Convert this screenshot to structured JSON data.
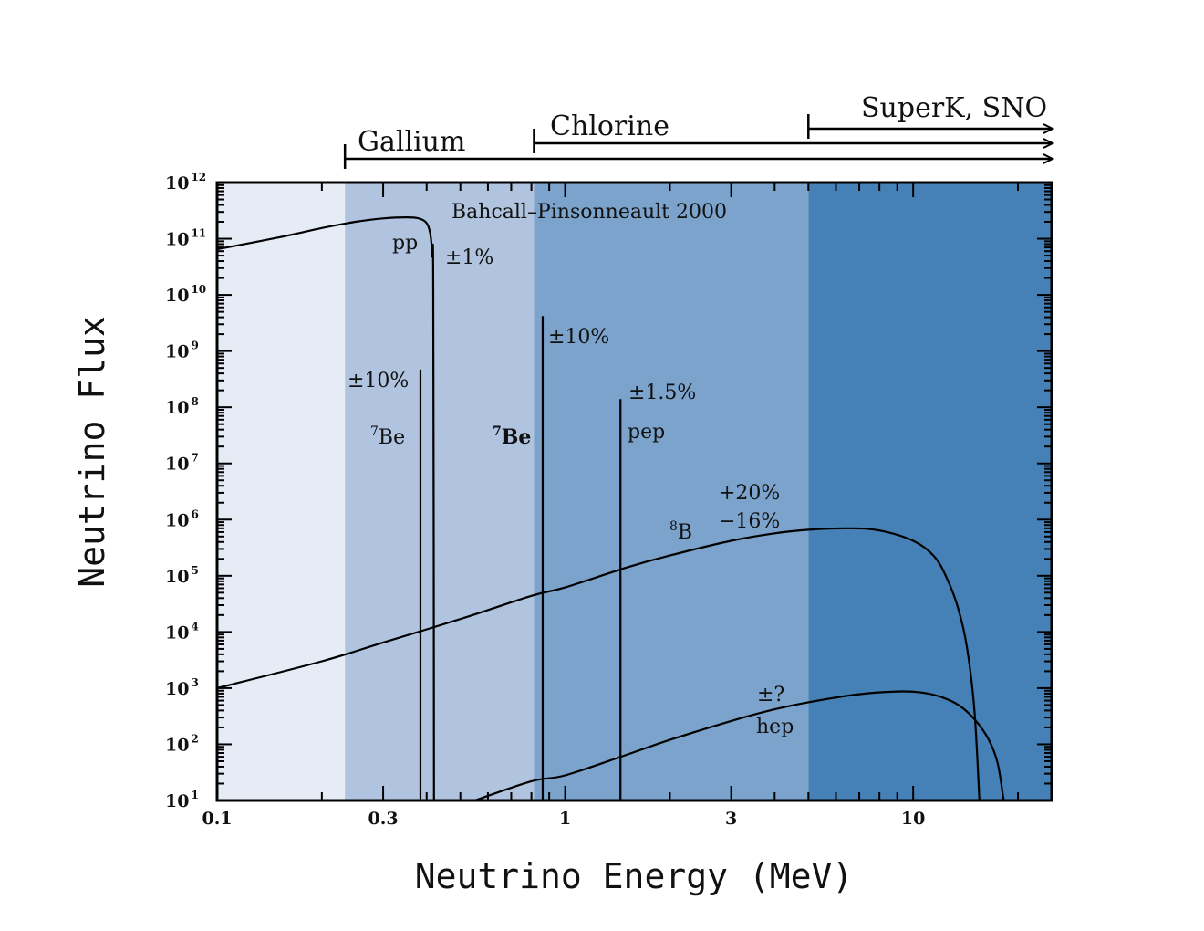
{
  "chart_data": {
    "type": "line",
    "title": "",
    "source_label": "Bahcall–Pinsonneault 2000",
    "xlabel": "Neutrino Energy (MeV)",
    "ylabel": "Neutrino Flux",
    "xscale": "log",
    "yscale": "log",
    "xlim": [
      0.1,
      25
    ],
    "ylim": [
      10,
      1000000000000.0
    ],
    "x_ticks": [
      {
        "value": 0.1,
        "label": "0.1"
      },
      {
        "value": 0.3,
        "label": "0.3"
      },
      {
        "value": 1,
        "label": "1"
      },
      {
        "value": 3,
        "label": "3"
      },
      {
        "value": 10,
        "label": "10"
      }
    ],
    "y_ticks": [
      {
        "value": 1,
        "base": "10",
        "exp": "1"
      },
      {
        "value": 2,
        "base": "10",
        "exp": "2"
      },
      {
        "value": 3,
        "base": "10",
        "exp": "3"
      },
      {
        "value": 4,
        "base": "10",
        "exp": "4"
      },
      {
        "value": 5,
        "base": "10",
        "exp": "5"
      },
      {
        "value": 6,
        "base": "10",
        "exp": "6"
      },
      {
        "value": 7,
        "base": "10",
        "exp": "7"
      },
      {
        "value": 8,
        "base": "10",
        "exp": "8"
      },
      {
        "value": 9,
        "base": "10",
        "exp": "9"
      },
      {
        "value": 10,
        "base": "10",
        "exp": "10"
      },
      {
        "value": 11,
        "base": "10",
        "exp": "11"
      },
      {
        "value": 12,
        "base": "10",
        "exp": "12"
      }
    ],
    "grid": false,
    "regions": [
      {
        "name": "below-gallium",
        "from": 0.1,
        "to": 0.233,
        "color": "#e6ecf6"
      },
      {
        "name": "gallium",
        "from": 0.233,
        "to": 0.814,
        "color": "#b0c4df"
      },
      {
        "name": "chlorine",
        "from": 0.814,
        "to": 5.0,
        "color": "#7ba3cb"
      },
      {
        "name": "superk-sno",
        "from": 5.0,
        "to": 25,
        "color": "#4581b6"
      }
    ],
    "detectors": [
      {
        "label": "Gallium",
        "threshold": 0.233
      },
      {
        "label": "Chlorine",
        "threshold": 0.814
      },
      {
        "label": "SuperK, SNO",
        "threshold": 5.0
      }
    ],
    "series": [
      {
        "name": "pp",
        "kind": "continuum",
        "label": "pp",
        "uncertainty": "±1%",
        "points": [
          [
            0.1,
            65000000000.0
          ],
          [
            0.15,
            105000000000.0
          ],
          [
            0.2,
            155000000000.0
          ],
          [
            0.25,
            200000000000.0
          ],
          [
            0.3,
            230000000000.0
          ],
          [
            0.35,
            240000000000.0
          ],
          [
            0.38,
            230000000000.0
          ],
          [
            0.4,
            190000000000.0
          ],
          [
            0.41,
            120000000000.0
          ],
          [
            0.415,
            50000000000.0
          ],
          [
            0.418,
            10000000000.0
          ],
          [
            0.42,
            10
          ]
        ]
      },
      {
        "name": "7Be (0.38 MeV)",
        "kind": "line",
        "label": "7Be",
        "label_sup": "7",
        "label_base": "Be",
        "uncertainty": "±10%",
        "energy": 0.384,
        "flux": 470000000.0
      },
      {
        "name": "7Be (0.86 MeV)",
        "kind": "line",
        "label": "7Be",
        "label_sup": "7",
        "label_base": "Be",
        "uncertainty": "±10%",
        "energy": 0.862,
        "flux": 4200000000.0
      },
      {
        "name": "pep",
        "kind": "line",
        "label": "pep",
        "uncertainty": "±1.5%",
        "energy": 1.442,
        "flux": 140000000.0
      },
      {
        "name": "8B",
        "kind": "continuum",
        "label": "8B",
        "label_sup": "8",
        "label_base": "B",
        "uncertainty_plus": "+20%",
        "uncertainty_minus": "−16%",
        "points": [
          [
            0.1,
            1000.0
          ],
          [
            0.2,
            3000.0
          ],
          [
            0.3,
            6500.0
          ],
          [
            0.5,
            17000.0
          ],
          [
            0.8,
            44000.0
          ],
          [
            1.0,
            62000.0
          ],
          [
            1.5,
            140000.0
          ],
          [
            2.0,
            230000.0
          ],
          [
            3.0,
            420000.0
          ],
          [
            4.0,
            570000.0
          ],
          [
            5.0,
            660000.0
          ],
          [
            6.5,
            700000.0
          ],
          [
            8.0,
            640000.0
          ],
          [
            10.0,
            420000.0
          ],
          [
            11.5,
            220000.0
          ],
          [
            12.5,
            90000.0
          ],
          [
            13.5,
            25000.0
          ],
          [
            14.3,
            5000.0
          ],
          [
            15.0,
            400.0
          ],
          [
            15.5,
            10
          ]
        ]
      },
      {
        "name": "hep",
        "kind": "continuum",
        "label": "hep",
        "uncertainty": "±?",
        "points": [
          [
            0.55,
            10
          ],
          [
            0.8,
            22
          ],
          [
            1.0,
            28
          ],
          [
            1.5,
            65
          ],
          [
            2.0,
            120
          ],
          [
            3.0,
            260
          ],
          [
            4.0,
            420
          ],
          [
            5.0,
            560
          ],
          [
            7.0,
            780
          ],
          [
            9.0,
            870
          ],
          [
            10.5,
            840
          ],
          [
            12.0,
            700
          ],
          [
            13.5,
            500
          ],
          [
            15.0,
            280
          ],
          [
            16.5,
            120
          ],
          [
            17.5,
            45
          ],
          [
            18.2,
            10
          ]
        ]
      }
    ]
  }
}
